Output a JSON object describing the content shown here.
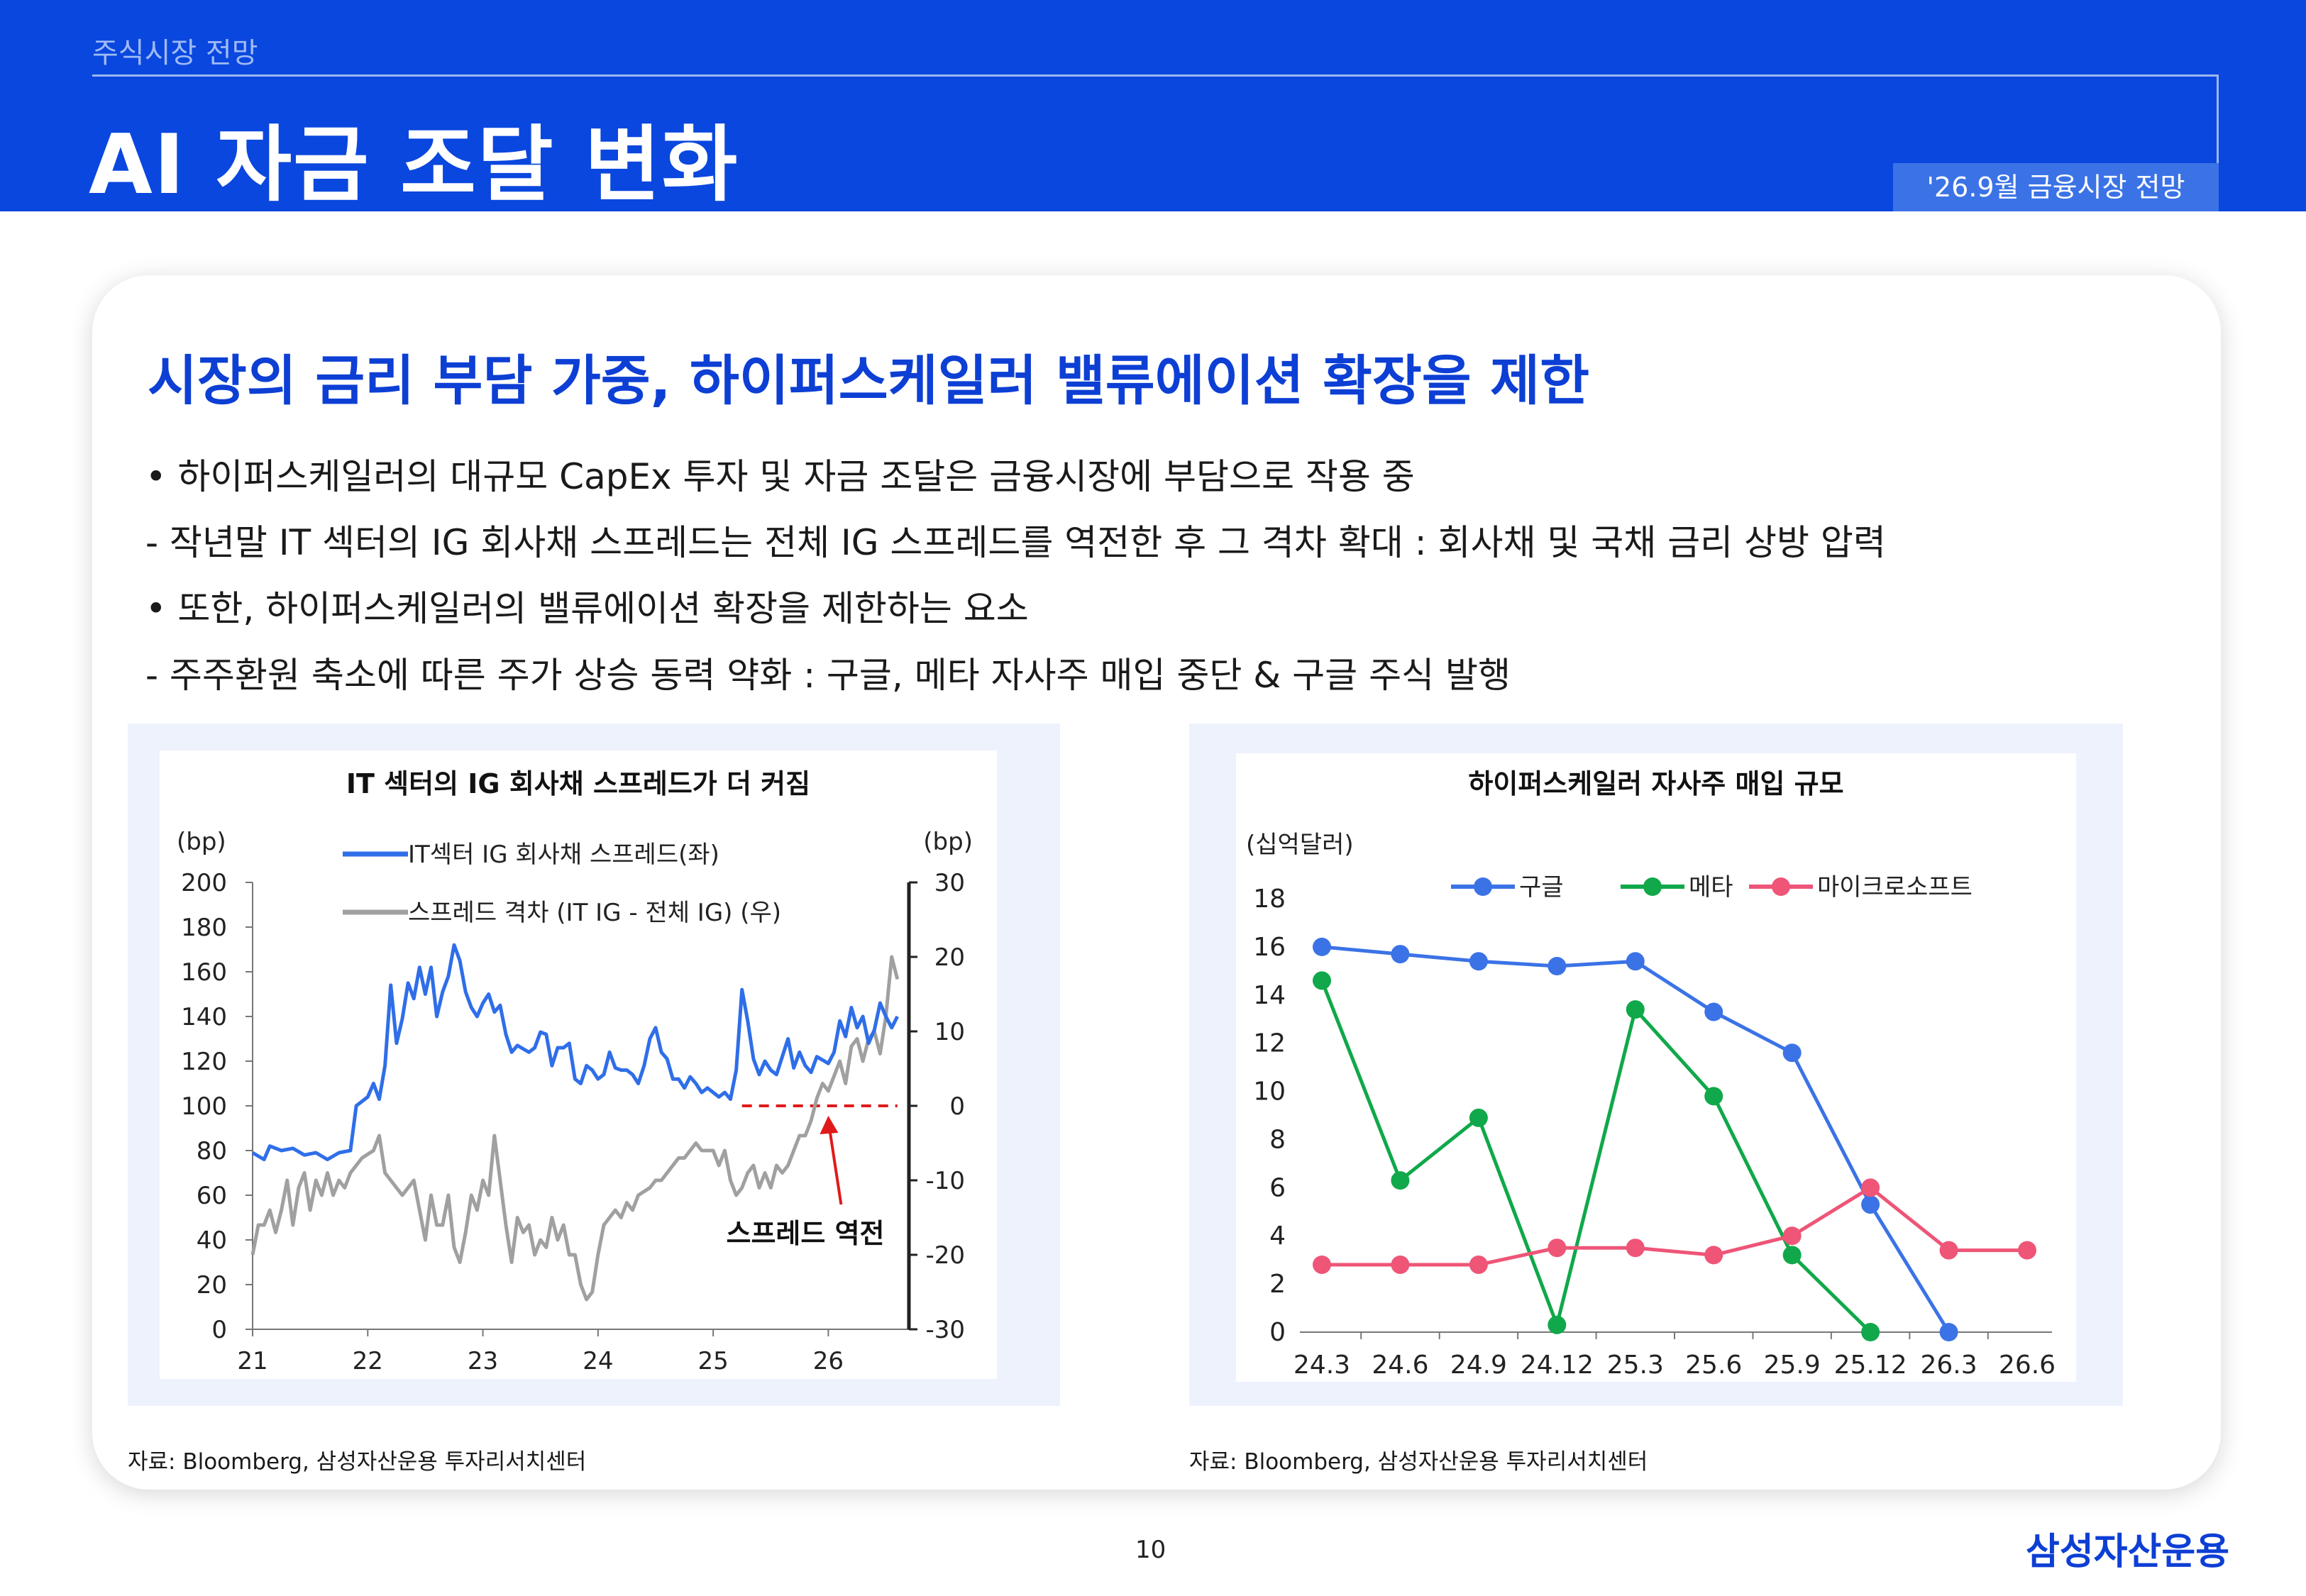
{
  "header": {
    "section": "주식시장 전망",
    "title": "AI 자금 조달 변화",
    "date_badge": "'26.9월 금융시장 전망"
  },
  "content": {
    "headline": "시장의 금리 부담 가중, 하이퍼스케일러 밸류에이션 확장을 제한",
    "bullets": [
      "• 하이퍼스케일러의 대규모 CapEx 투자 및 자금 조달은 금융시장에 부담으로 작용 중",
      " - 작년말 IT 섹터의 IG 회사채 스프레드는 전체 IG 스프레드를 역전한 후 그 격차 확대 : 회사채 및 국채 금리 상방 압력",
      "• 또한, 하이퍼스케일러의 밸류에이션 확장을 제한하는 요소",
      "  - 주주환원 축소에 따른 주가 상승 동력 약화 : 구글, 메타 자사주 매입 중단 & 구글 주식 발행"
    ]
  },
  "chart_data": [
    {
      "type": "line",
      "title": "IT 섹터의 IG 회사채 스프레드가 더 커짐",
      "left_unit": "(bp)",
      "right_unit": "(bp)",
      "x_ticks": [
        "21",
        "22",
        "23",
        "24",
        "25",
        "26"
      ],
      "y_left": {
        "min": 0,
        "max": 200,
        "ticks": [
          0,
          20,
          40,
          60,
          80,
          100,
          120,
          140,
          160,
          180,
          200
        ]
      },
      "y_right": {
        "min": -30,
        "max": 30,
        "ticks": [
          -30,
          -20,
          -10,
          0,
          10,
          20,
          30
        ]
      },
      "y_right_labels": [
        "-30",
        "-20",
        "-10",
        "0",
        "10",
        "20",
        "30"
      ],
      "series": [
        {
          "name": "IT섹터 IG 회사채 스프레드(좌)",
          "axis": "left",
          "color": "#2f6ee8",
          "points": [
            [
              21.0,
              79
            ],
            [
              21.1,
              76
            ],
            [
              21.15,
              82
            ],
            [
              21.25,
              80
            ],
            [
              21.35,
              81
            ],
            [
              21.45,
              78
            ],
            [
              21.55,
              79
            ],
            [
              21.65,
              76
            ],
            [
              21.75,
              79
            ],
            [
              21.85,
              80
            ],
            [
              21.9,
              100
            ],
            [
              22.0,
              104
            ],
            [
              22.05,
              110
            ],
            [
              22.1,
              103
            ],
            [
              22.15,
              118
            ],
            [
              22.2,
              154
            ],
            [
              22.25,
              128
            ],
            [
              22.3,
              139
            ],
            [
              22.35,
              155
            ],
            [
              22.4,
              148
            ],
            [
              22.45,
              162
            ],
            [
              22.5,
              150
            ],
            [
              22.55,
              162
            ],
            [
              22.6,
              140
            ],
            [
              22.65,
              151
            ],
            [
              22.7,
              158
            ],
            [
              22.75,
              172
            ],
            [
              22.8,
              165
            ],
            [
              22.85,
              151
            ],
            [
              22.9,
              144
            ],
            [
              22.95,
              140
            ],
            [
              23.0,
              146
            ],
            [
              23.05,
              150
            ],
            [
              23.1,
              142
            ],
            [
              23.15,
              145
            ],
            [
              23.2,
              132
            ],
            [
              23.25,
              124
            ],
            [
              23.3,
              127
            ],
            [
              23.4,
              124
            ],
            [
              23.45,
              126
            ],
            [
              23.5,
              133
            ],
            [
              23.55,
              132
            ],
            [
              23.6,
              118
            ],
            [
              23.65,
              126
            ],
            [
              23.7,
              126
            ],
            [
              23.75,
              128
            ],
            [
              23.8,
              112
            ],
            [
              23.85,
              110
            ],
            [
              23.9,
              118
            ],
            [
              23.95,
              116
            ],
            [
              24.0,
              112
            ],
            [
              24.05,
              114
            ],
            [
              24.1,
              124
            ],
            [
              24.15,
              117
            ],
            [
              24.2,
              116
            ],
            [
              24.25,
              116
            ],
            [
              24.3,
              114
            ],
            [
              24.35,
              110
            ],
            [
              24.4,
              118
            ],
            [
              24.45,
              130
            ],
            [
              24.5,
              135
            ],
            [
              24.55,
              124
            ],
            [
              24.6,
              121
            ],
            [
              24.65,
              112
            ],
            [
              24.7,
              112
            ],
            [
              24.75,
              108
            ],
            [
              24.8,
              113
            ],
            [
              24.85,
              110
            ],
            [
              24.9,
              106
            ],
            [
              24.95,
              108
            ],
            [
              25.05,
              104
            ],
            [
              25.1,
              106
            ],
            [
              25.15,
              103
            ],
            [
              25.2,
              116
            ],
            [
              25.25,
              152
            ],
            [
              25.3,
              138
            ],
            [
              25.35,
              121
            ],
            [
              25.4,
              114
            ],
            [
              25.45,
              120
            ],
            [
              25.5,
              116
            ],
            [
              25.55,
              114
            ],
            [
              25.6,
              122
            ],
            [
              25.65,
              130
            ],
            [
              25.7,
              117
            ],
            [
              25.75,
              124
            ],
            [
              25.8,
              118
            ],
            [
              25.85,
              115
            ],
            [
              25.9,
              122
            ],
            [
              26.0,
              119
            ],
            [
              26.05,
              124
            ],
            [
              26.1,
              138
            ],
            [
              26.15,
              131
            ],
            [
              26.2,
              144
            ],
            [
              26.25,
              135
            ],
            [
              26.3,
              140
            ],
            [
              26.35,
              128
            ],
            [
              26.4,
              134
            ],
            [
              26.45,
              146
            ],
            [
              26.5,
              140
            ],
            [
              26.55,
              135
            ],
            [
              26.6,
              140
            ]
          ]
        },
        {
          "name": "스프레드 격차 (IT IG - 전체 IG) (우)",
          "axis": "right",
          "color": "#a0a0a0",
          "points": [
            [
              21.0,
              -20
            ],
            [
              21.05,
              -16
            ],
            [
              21.1,
              -16
            ],
            [
              21.15,
              -14
            ],
            [
              21.2,
              -17
            ],
            [
              21.25,
              -14
            ],
            [
              21.3,
              -10
            ],
            [
              21.35,
              -16
            ],
            [
              21.4,
              -11
            ],
            [
              21.45,
              -9
            ],
            [
              21.5,
              -14
            ],
            [
              21.55,
              -10
            ],
            [
              21.6,
              -12
            ],
            [
              21.65,
              -9
            ],
            [
              21.7,
              -12
            ],
            [
              21.75,
              -10
            ],
            [
              21.8,
              -11
            ],
            [
              21.85,
              -9
            ],
            [
              21.95,
              -7
            ],
            [
              22.05,
              -6
            ],
            [
              22.1,
              -4
            ],
            [
              22.15,
              -9
            ],
            [
              22.2,
              -10
            ],
            [
              22.3,
              -12
            ],
            [
              22.4,
              -10
            ],
            [
              22.45,
              -14
            ],
            [
              22.5,
              -18
            ],
            [
              22.55,
              -12
            ],
            [
              22.6,
              -16
            ],
            [
              22.65,
              -16
            ],
            [
              22.7,
              -12
            ],
            [
              22.75,
              -19
            ],
            [
              22.8,
              -21
            ],
            [
              22.85,
              -17
            ],
            [
              22.9,
              -12
            ],
            [
              22.95,
              -14
            ],
            [
              23.0,
              -10
            ],
            [
              23.05,
              -12
            ],
            [
              23.1,
              -4
            ],
            [
              23.15,
              -10
            ],
            [
              23.2,
              -16
            ],
            [
              23.25,
              -21
            ],
            [
              23.3,
              -15
            ],
            [
              23.35,
              -17
            ],
            [
              23.4,
              -16
            ],
            [
              23.45,
              -20
            ],
            [
              23.5,
              -18
            ],
            [
              23.55,
              -19
            ],
            [
              23.6,
              -15
            ],
            [
              23.65,
              -18
            ],
            [
              23.7,
              -16
            ],
            [
              23.75,
              -20
            ],
            [
              23.8,
              -20
            ],
            [
              23.85,
              -24
            ],
            [
              23.9,
              -26
            ],
            [
              23.95,
              -25
            ],
            [
              24.0,
              -20
            ],
            [
              24.05,
              -16
            ],
            [
              24.1,
              -15
            ],
            [
              24.15,
              -14
            ],
            [
              24.2,
              -15
            ],
            [
              24.25,
              -13
            ],
            [
              24.3,
              -14
            ],
            [
              24.35,
              -12
            ],
            [
              24.45,
              -11
            ],
            [
              24.5,
              -10
            ],
            [
              24.55,
              -10
            ],
            [
              24.6,
              -9
            ],
            [
              24.65,
              -8
            ],
            [
              24.7,
              -7
            ],
            [
              24.75,
              -7
            ],
            [
              24.8,
              -6
            ],
            [
              24.85,
              -5
            ],
            [
              24.9,
              -6
            ],
            [
              25.0,
              -6
            ],
            [
              25.05,
              -8
            ],
            [
              25.1,
              -6
            ],
            [
              25.15,
              -10
            ],
            [
              25.2,
              -12
            ],
            [
              25.25,
              -11
            ],
            [
              25.3,
              -9
            ],
            [
              25.35,
              -8
            ],
            [
              25.4,
              -11
            ],
            [
              25.45,
              -9
            ],
            [
              25.5,
              -11
            ],
            [
              25.55,
              -8
            ],
            [
              25.6,
              -9
            ],
            [
              25.65,
              -8
            ],
            [
              25.7,
              -6
            ],
            [
              25.75,
              -4
            ],
            [
              25.8,
              -4
            ],
            [
              25.85,
              -2
            ],
            [
              25.9,
              1
            ],
            [
              25.95,
              3
            ],
            [
              26.0,
              2
            ],
            [
              26.05,
              4
            ],
            [
              26.1,
              6
            ],
            [
              26.15,
              3
            ],
            [
              26.2,
              8
            ],
            [
              26.25,
              9
            ],
            [
              26.3,
              6
            ],
            [
              26.35,
              9
            ],
            [
              26.4,
              10
            ],
            [
              26.45,
              7
            ],
            [
              26.5,
              12
            ],
            [
              26.55,
              20
            ],
            [
              26.6,
              17
            ]
          ]
        }
      ],
      "reference_line": {
        "axis": "right",
        "value": 0,
        "x_from": 25.25,
        "x_to": 26.6,
        "color": "#e01a1a"
      },
      "annotation": {
        "text": "스프레드 역전",
        "x": 26.0,
        "value_right": 0
      }
    },
    {
      "type": "line",
      "title": "하이퍼스케일러 자사주 매입 규모",
      "unit": "(십억달러)",
      "categories": [
        "24.3",
        "24.6",
        "24.9",
        "24.12",
        "25.3",
        "25.6",
        "25.9",
        "25.12",
        "26.3",
        "26.6"
      ],
      "y": {
        "min": 0,
        "max": 18,
        "ticks": [
          0,
          2,
          4,
          6,
          8,
          10,
          12,
          14,
          16,
          18
        ]
      },
      "series": [
        {
          "name": "구글",
          "color": "#3b73e6",
          "values": [
            16.0,
            15.7,
            15.4,
            15.2,
            15.4,
            13.3,
            11.6,
            5.3,
            0.0,
            null
          ]
        },
        {
          "name": "메타",
          "color": "#10a84a",
          "values": [
            14.6,
            6.3,
            8.9,
            0.3,
            13.4,
            9.8,
            3.2,
            0.0,
            null,
            null
          ]
        },
        {
          "name": "마이크로소프트",
          "color": "#ee5577",
          "values": [
            2.8,
            2.8,
            2.8,
            3.5,
            3.5,
            3.2,
            4.0,
            6.0,
            3.4,
            3.4
          ]
        }
      ]
    }
  ],
  "sources": {
    "left": "자료: Bloomberg, 삼성자산운용 투자리서치센터",
    "right": "자료: Bloomberg, 삼성자산운용 투자리서치센터"
  },
  "footer": {
    "page_number": "10",
    "brand": "삼성자산운용"
  }
}
